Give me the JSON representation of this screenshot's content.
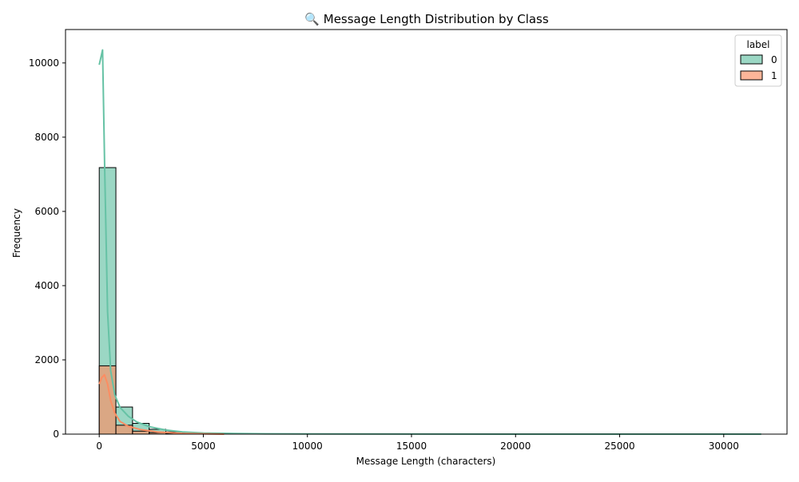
{
  "chart_data": {
    "type": "bar",
    "title": "🔍 Message Length Distribution by Class",
    "xlabel": "Message Length (characters)",
    "ylabel": "Frequency",
    "xlim": [
      -1620,
      33040
    ],
    "ylim": [
      0,
      10900
    ],
    "xticks": [
      0,
      5000,
      10000,
      15000,
      20000,
      25000,
      30000
    ],
    "yticks": [
      0,
      2000,
      4000,
      6000,
      8000,
      10000
    ],
    "grid": false,
    "legend": {
      "title": "label",
      "placement": "top-right",
      "entries": [
        "0",
        "1"
      ]
    },
    "bin_edges": [
      0,
      800,
      1600,
      2400,
      3200,
      4000,
      4800,
      5600,
      6400,
      7200,
      8000,
      8800,
      9600,
      10400,
      11200,
      12000
    ],
    "series": [
      {
        "name": "0",
        "color": "#66c2a5",
        "counts": [
          7180,
          730,
          290,
          130,
          60,
          30,
          15,
          8,
          5,
          3,
          2,
          1,
          1,
          1,
          1
        ],
        "kde_x": [
          0,
          160,
          260,
          400,
          550,
          750,
          1000,
          1400,
          1800,
          2400,
          3200,
          4000,
          5000,
          6500,
          8000,
          10000,
          15000,
          20000,
          25000,
          30000,
          31800
        ],
        "kde_y": [
          9950,
          10350,
          7200,
          3300,
          1700,
          1050,
          720,
          480,
          330,
          200,
          110,
          60,
          30,
          15,
          8,
          5,
          2,
          1,
          1,
          0,
          0
        ]
      },
      {
        "name": "1",
        "color": "#fc8d62",
        "counts": [
          1840,
          240,
          80,
          40,
          15,
          8,
          4,
          2,
          1,
          1,
          0,
          0,
          0,
          0,
          0
        ],
        "kde_x": [
          0,
          120,
          250,
          400,
          550,
          750,
          1000,
          1400,
          2000,
          2800,
          4000,
          5000,
          6000
        ],
        "kde_y": [
          1350,
          1520,
          1600,
          1350,
          900,
          560,
          340,
          210,
          120,
          60,
          20,
          8,
          0
        ]
      }
    ]
  }
}
